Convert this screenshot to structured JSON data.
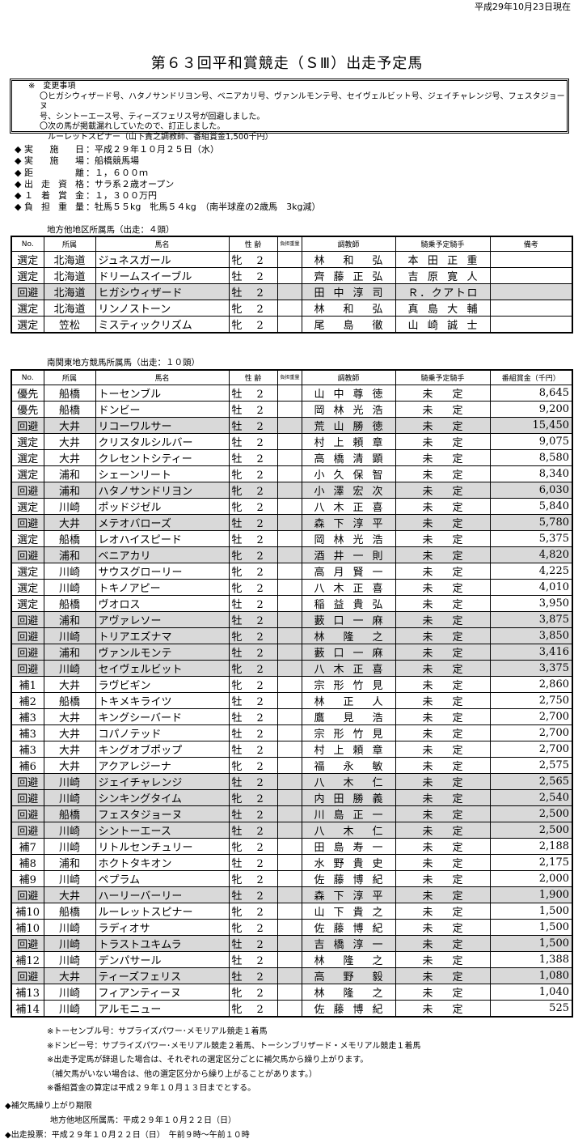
{
  "as_of": "平成29年10月23日現在",
  "title": "第６３回平和賞競走（ＳⅢ）出走予定馬",
  "notice": {
    "heading": "※　変更事項",
    "lines": [
      "〇ヒガシウィザード号、ハタノサンドリヨン号、ベニアカリ号、ヴァンルモンテ号、セイヴェルビット号、ジェイチャレンジ号、フェスタジョーヌ",
      "号、シントーエース号、ティーズフェリス号が回避しました。",
      "〇次の馬が掲載漏れしていたので、訂正しました。",
      "ルーレットスピナー（山下貴之調教師、番組賞金1,500千円）"
    ]
  },
  "info": [
    {
      "key": "実施日",
      "value": "平成２９年１０月２５日（水）"
    },
    {
      "key": "実施場",
      "value": "船橋競馬場"
    },
    {
      "key": "距離",
      "value": "１，６００ｍ"
    },
    {
      "key": "出走資格",
      "value": "サラ系２歳オープン"
    },
    {
      "key": "１着賞金",
      "value": "１，３００万円"
    },
    {
      "key": "負担重量",
      "value": "牡馬５５kg　牝馬５４kg　（南半球産の2歳馬　3kg減）"
    }
  ],
  "table1": {
    "caption": "地方他地区所属馬（出走：４頭）",
    "headers": [
      "No.",
      "所属",
      "馬名",
      "性 齢",
      "負担重量",
      "調教師",
      "騎乗予定騎手",
      "備考"
    ],
    "rows": [
      [
        "選定",
        "北海道",
        "ジュネスガール",
        "牝",
        "2",
        "",
        "林和弘",
        "本田正重",
        ""
      ],
      [
        "選定",
        "北海道",
        "ドリームスイーブル",
        "牡",
        "2",
        "",
        "齊藤正弘",
        "吉原寛人",
        ""
      ],
      [
        "回避",
        "北海道",
        "ヒガシウィザード",
        "牡",
        "2",
        "",
        "田中淳司",
        "Ｒ．クアトロ",
        ""
      ],
      [
        "選定",
        "北海道",
        "リンノストーン",
        "牝",
        "2",
        "",
        "林和弘",
        "真島大輔",
        ""
      ],
      [
        "選定",
        "笠松",
        "ミスティックリズム",
        "牝",
        "2",
        "",
        "尾島徹",
        "山崎誠士",
        ""
      ]
    ]
  },
  "table2": {
    "caption": "南関東地方競馬所属馬（出走：１０頭）",
    "headers": [
      "No.",
      "所属",
      "馬名",
      "性 齢",
      "負担重量",
      "調教師",
      "騎乗予定騎手",
      "番組賞金（千円）"
    ],
    "rows": [
      [
        "優先",
        "船橋",
        "トーセンブル",
        "牡",
        "2",
        "",
        "山中尊徳",
        "未定",
        "8,645"
      ],
      [
        "優先",
        "船橋",
        "ドンビー",
        "牡",
        "2",
        "",
        "岡林光浩",
        "未定",
        "9,200"
      ],
      [
        "回避",
        "大井",
        "リコーワルサー",
        "牡",
        "2",
        "",
        "荒山勝徳",
        "未定",
        "15,450"
      ],
      [
        "選定",
        "大井",
        "クリスタルシルバー",
        "牡",
        "2",
        "",
        "村上頼章",
        "未定",
        "9,075"
      ],
      [
        "選定",
        "大井",
        "クレセントシティー",
        "牡",
        "2",
        "",
        "高橋清顕",
        "未定",
        "8,580"
      ],
      [
        "選定",
        "浦和",
        "シェーンリート",
        "牝",
        "2",
        "",
        "小久保智",
        "未定",
        "8,340"
      ],
      [
        "回避",
        "浦和",
        "ハタノサンドリヨン",
        "牝",
        "2",
        "",
        "小澤宏次",
        "未定",
        "6,030"
      ],
      [
        "選定",
        "川崎",
        "ポッドジゼル",
        "牝",
        "2",
        "",
        "八木正喜",
        "未定",
        "5,840"
      ],
      [
        "回避",
        "大井",
        "メテオバローズ",
        "牡",
        "2",
        "",
        "森下淳平",
        "未定",
        "5,780"
      ],
      [
        "選定",
        "船橋",
        "レオハイスピード",
        "牡",
        "2",
        "",
        "岡林光浩",
        "未定",
        "5,375"
      ],
      [
        "回避",
        "浦和",
        "ベニアカリ",
        "牝",
        "2",
        "",
        "酒井一則",
        "未定",
        "4,820"
      ],
      [
        "選定",
        "川崎",
        "サウスグローリー",
        "牝",
        "2",
        "",
        "高月賢一",
        "未定",
        "4,225"
      ],
      [
        "選定",
        "川崎",
        "トキノアピー",
        "牝",
        "2",
        "",
        "八木正喜",
        "未定",
        "4,010"
      ],
      [
        "選定",
        "船橋",
        "ヴオロス",
        "牡",
        "2",
        "",
        "稲益貴弘",
        "未定",
        "3,950"
      ],
      [
        "回避",
        "浦和",
        "アヴァレソー",
        "牡",
        "2",
        "",
        "藪口一麻",
        "未定",
        "3,875"
      ],
      [
        "回避",
        "川崎",
        "トリアエズナマ",
        "牝",
        "2",
        "",
        "林隆之",
        "未定",
        "3,850"
      ],
      [
        "回避",
        "浦和",
        "ヴァンルモンテ",
        "牡",
        "2",
        "",
        "藪口一麻",
        "未定",
        "3,416"
      ],
      [
        "回避",
        "川崎",
        "セイヴェルビット",
        "牝",
        "2",
        "",
        "八木正喜",
        "未定",
        "3,375"
      ],
      [
        "補1",
        "大井",
        "ラヴビギン",
        "牝",
        "2",
        "",
        "宗形竹見",
        "未定",
        "2,860"
      ],
      [
        "補2",
        "船橋",
        "トキメキライツ",
        "牡",
        "2",
        "",
        "林正人",
        "未定",
        "2,750"
      ],
      [
        "補3",
        "大井",
        "キングシーバード",
        "牡",
        "2",
        "",
        "鷹見浩",
        "未定",
        "2,700"
      ],
      [
        "補3",
        "大井",
        "コパノテッド",
        "牡",
        "2",
        "",
        "宗形竹見",
        "未定",
        "2,700"
      ],
      [
        "補3",
        "大井",
        "キングオブポップ",
        "牡",
        "2",
        "",
        "村上頼章",
        "未定",
        "2,700"
      ],
      [
        "補6",
        "大井",
        "アクアレジーナ",
        "牝",
        "2",
        "",
        "福永敏",
        "未定",
        "2,575"
      ],
      [
        "回避",
        "川崎",
        "ジェイチャレンジ",
        "牡",
        "2",
        "",
        "八木仁",
        "未定",
        "2,565"
      ],
      [
        "回避",
        "川崎",
        "シンキングタイム",
        "牝",
        "2",
        "",
        "内田勝義",
        "未定",
        "2,540"
      ],
      [
        "回避",
        "船橋",
        "フェスタジョーヌ",
        "牡",
        "2",
        "",
        "川島正一",
        "未定",
        "2,500"
      ],
      [
        "回避",
        "川崎",
        "シントーエース",
        "牡",
        "2",
        "",
        "八木仁",
        "未定",
        "2,500"
      ],
      [
        "補7",
        "川崎",
        "リトルセンチュリー",
        "牝",
        "2",
        "",
        "田島寿一",
        "未定",
        "2,188"
      ],
      [
        "補8",
        "浦和",
        "ホクトタキオン",
        "牡",
        "2",
        "",
        "水野貴史",
        "未定",
        "2,175"
      ],
      [
        "補9",
        "川崎",
        "ペプラム",
        "牝",
        "2",
        "",
        "佐藤博紀",
        "未定",
        "2,000"
      ],
      [
        "回避",
        "大井",
        "ハーリーバーリー",
        "牡",
        "2",
        "",
        "森下淳平",
        "未定",
        "1,900"
      ],
      [
        "補10",
        "船橋",
        "ルーレットスピナー",
        "牝",
        "2",
        "",
        "山下貴之",
        "未定",
        "1,500"
      ],
      [
        "補10",
        "川崎",
        "ラディオサ",
        "牝",
        "2",
        "",
        "佐藤博紀",
        "未定",
        "1,500"
      ],
      [
        "回避",
        "川崎",
        "トラストユキムラ",
        "牡",
        "2",
        "",
        "吉橋淳一",
        "未定",
        "1,500"
      ],
      [
        "補12",
        "川崎",
        "デンパサール",
        "牡",
        "2",
        "",
        "林隆之",
        "未定",
        "1,388"
      ],
      [
        "回避",
        "大井",
        "ティーズフェリス",
        "牡",
        "2",
        "",
        "高野毅",
        "未定",
        "1,080"
      ],
      [
        "補13",
        "川崎",
        "フィアンティーヌ",
        "牝",
        "2",
        "",
        "林隆之",
        "未定",
        "1,040"
      ],
      [
        "補14",
        "川崎",
        "アルモニュー",
        "牝",
        "2",
        "",
        "佐藤博紀",
        "未定",
        "525"
      ]
    ]
  },
  "notes": [
    "※トーセンブル号：サプライズパワー･メモリアル競走１着馬",
    "※ドンビー号：サプライズパワー･メモリアル競走２着馬、トーシンブリザード・メモリアル競走１着馬",
    "※出走予定馬が辞退した場合は、それぞれの選定区分ごとに補欠馬から繰り上がります。",
    "（補欠馬がいない場合は、他の選定区分から繰り上がることがあります。）",
    "※番組賞金の算定は平成２９年１０月１３日までとする。"
  ],
  "deadline": {
    "heading": "◆補欠馬繰り上がり期限",
    "line": "地方他地区所属馬：平成２９年１０月２２日（日）",
    "voting": "◆出走投票：平成２９年１０月２２日（日）　午前９時～午前１０時"
  },
  "colors": {
    "withdrawn_row": "#d9d9d9"
  }
}
